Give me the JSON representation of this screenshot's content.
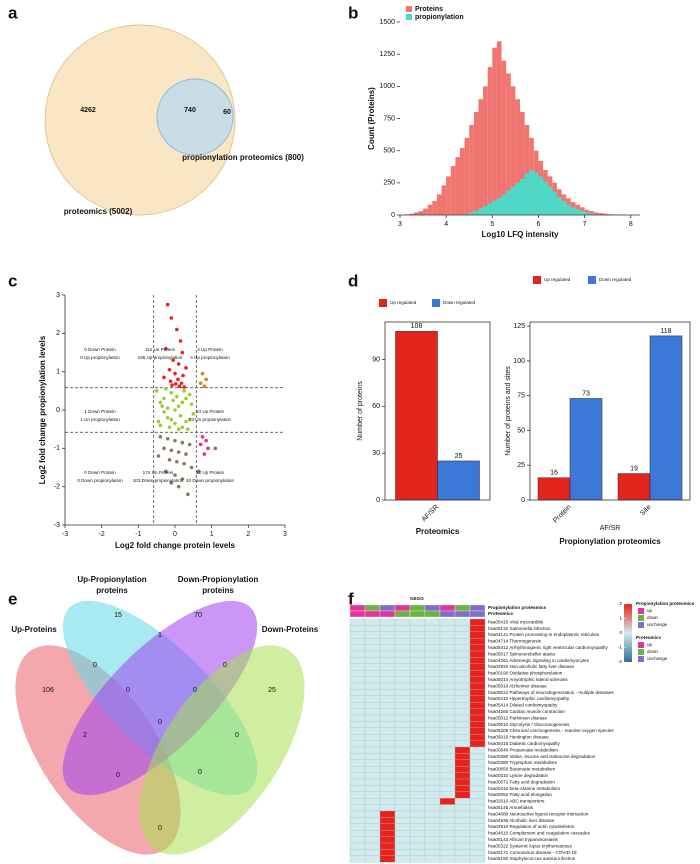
{
  "chart_data": [
    {
      "type": "venn2",
      "panel": "a",
      "sets": [
        {
          "label": "proteomics (5002)",
          "color": "#f6e0b5"
        },
        {
          "label": "propionylation proteomics (800)",
          "color": "#bcdaee"
        }
      ],
      "values": [
        4262,
        740,
        60
      ]
    },
    {
      "type": "histogram",
      "panel": "b",
      "xlabel": "Log10 LFQ intensity",
      "ylabel": "Count (Proteins)",
      "bins": [
        3.1,
        3.2,
        3.3,
        3.4,
        3.5,
        3.6,
        3.7,
        3.8,
        3.9,
        4,
        4.1,
        4.2,
        4.3,
        4.4,
        4.5,
        4.6,
        4.7,
        4.8,
        4.9,
        5,
        5.1,
        5.2,
        5.3,
        5.4,
        5.5,
        5.6,
        5.7,
        5.8,
        5.9,
        6,
        6.1,
        6.2,
        6.3,
        6.4,
        6.5,
        6.6,
        6.7,
        6.8,
        6.9,
        7,
        7.1,
        7.2,
        7.3,
        7.4,
        7.5,
        7.6,
        7.7,
        7.8,
        7.9,
        8
      ],
      "series": [
        {
          "name": "Proteins",
          "color": "#f07470",
          "values": [
            5,
            10,
            20,
            30,
            50,
            80,
            110,
            160,
            230,
            300,
            380,
            450,
            520,
            600,
            700,
            800,
            900,
            1000,
            1150,
            1300,
            1350,
            1200,
            1100,
            1000,
            900,
            800,
            700,
            600,
            500,
            420,
            350,
            300,
            250,
            200,
            160,
            130,
            100,
            80,
            60,
            40,
            30,
            20,
            15,
            10,
            6,
            4,
            2,
            1,
            1
          ]
        },
        {
          "name": "propionylation",
          "color": "#4dd9c8",
          "values": [
            0,
            0,
            0,
            0,
            0,
            0,
            0,
            0,
            0,
            0,
            0,
            0,
            5,
            10,
            20,
            30,
            50,
            70,
            90,
            110,
            130,
            160,
            190,
            220,
            250,
            280,
            320,
            350,
            330,
            300,
            260,
            220,
            180,
            140,
            110,
            80,
            60,
            45,
            30,
            20,
            12,
            6,
            3,
            0,
            0,
            0,
            0,
            0,
            0
          ]
        }
      ],
      "xlim": [
        3,
        8.2
      ],
      "ylim": [
        0,
        1500
      ],
      "xticks": [
        3,
        4,
        5,
        6,
        7,
        8
      ],
      "yticks": [
        0,
        250,
        500,
        750,
        1000,
        1250,
        1500
      ]
    },
    {
      "type": "scatter",
      "panel": "c",
      "xlabel": "Log2 fold change protein levels",
      "ylabel": "Log2 fold change propionylation levels",
      "xlim": [
        -3,
        3
      ],
      "ylim": [
        -3,
        3
      ],
      "xticks": [
        -3,
        -2,
        -1,
        0,
        1,
        2,
        3
      ],
      "yticks": [
        -3,
        -2,
        -1,
        0,
        1,
        2,
        3
      ],
      "hlines": [
        -0.58,
        0.58
      ],
      "vlines": [
        -0.58,
        0.58
      ],
      "series": [
        {
          "color": "#9acd32",
          "x": [
            -0.5,
            -0.4,
            -0.3,
            -0.2,
            -0.1,
            0,
            0.1,
            0.2,
            0.3,
            0.4,
            0.5,
            -0.45,
            -0.35,
            -0.25,
            -0.15,
            -0.05,
            0.05,
            0.15,
            0.25,
            0.35,
            0.45,
            -0.3,
            -0.1,
            0.1,
            0.3,
            -0.2,
            0,
            0.2,
            -0.4,
            0.4
          ],
          "y": [
            0.5,
            -0.4,
            0.3,
            -0.2,
            0.45,
            0,
            -0.5,
            0.2,
            -0.3,
            0.4,
            -0.1,
            -0.3,
            0.1,
            0.55,
            -0.45,
            0.25,
            0.35,
            -0.15,
            0.5,
            -0.5,
            0.15,
            -0.05,
            -0.25,
            0.1,
            0.3,
            0.05,
            -0.35,
            -0.45,
            0.2,
            -0.25
          ]
        },
        {
          "color": "#8b7a5a",
          "x": [
            -0.4,
            -0.2,
            0,
            0.2,
            0.4,
            -0.3,
            -0.1,
            0.1,
            0.3,
            -0.45,
            -0.15,
            0.05,
            0.25,
            0.45,
            -0.25,
            0,
            0.2,
            -0.1,
            0.1,
            0.35,
            1.1,
            0.65
          ],
          "y": [
            -0.7,
            -0.75,
            -0.8,
            -0.85,
            -0.9,
            -1,
            -1.05,
            -1.1,
            -1.15,
            -1.2,
            -1.3,
            -1.35,
            -1.4,
            -1.5,
            -1.6,
            -1.7,
            -1.8,
            -1.9,
            -2,
            -2.2,
            -1,
            -1.6
          ]
        },
        {
          "color": "#e8231e",
          "x": [
            -0.2,
            -0.1,
            0.05,
            0.15,
            -0.25,
            0.2,
            -0.05,
            0.1,
            0.3,
            -0.15,
            0,
            0.22,
            -0.3,
            0.08,
            -0.12,
            0.18,
            0.02,
            -0.08,
            0.12,
            0.25
          ],
          "y": [
            2.75,
            2.4,
            2.1,
            1.8,
            1.6,
            1.5,
            1.3,
            1.2,
            1.1,
            1.05,
            0.95,
            0.9,
            0.85,
            0.8,
            0.75,
            0.7,
            0.68,
            0.65,
            0.62,
            0.6
          ]
        },
        {
          "color": "#e08020",
          "x": [
            0.75,
            0.85,
            0.7,
            0.8
          ],
          "y": [
            0.95,
            0.8,
            0.7,
            0.62
          ]
        },
        {
          "color": "#e0338e",
          "x": [
            0.75,
            0.85,
            0.9,
            0.8,
            0.7
          ],
          "y": [
            -0.7,
            -0.8,
            -1,
            -1.15,
            -0.9
          ]
        }
      ],
      "annotations": [
        "0 Down Protein",
        "0 Up propionylation",
        "112 Un Protein",
        "185 Up propionylation",
        "4 Up Protein",
        "4 Up propionylation",
        "1 Down Protein",
        "1 Un propionylation",
        "24 Up Protein",
        "73 Un propionylation",
        "0 Down Protein",
        "0 Down propionylation",
        "174 Un Protein",
        "103 Down propionylation",
        "12 Up Protein",
        "10 Down propionylation"
      ]
    },
    {
      "type": "bar",
      "panel": "d",
      "ylabel": "Number of proteins",
      "subtitle": "Proteomics",
      "categories": [
        "AF/SR"
      ],
      "series": [
        {
          "name": "Up regulated",
          "color": "#e2261e",
          "values": [
            108
          ]
        },
        {
          "name": "Down regulated",
          "color": "#3c78d8",
          "values": [
            25
          ]
        }
      ],
      "ylim": [
        0,
        114
      ],
      "yticks": [
        0,
        30,
        60,
        90
      ]
    },
    {
      "type": "bar",
      "ylabel": "Number of proteins and sites",
      "xlabel": "AF/SR",
      "subtitle": "Propionylation proteomics",
      "categories": [
        "Protein",
        "Site"
      ],
      "series": [
        {
          "name": "Up regulated",
          "color": "#e2261e",
          "values": [
            16,
            19
          ]
        },
        {
          "name": "Down regulated",
          "color": "#3c78d8",
          "values": [
            73,
            118
          ]
        }
      ],
      "ylim": [
        0,
        128
      ],
      "yticks": [
        0,
        25,
        50,
        75,
        100,
        125
      ]
    },
    {
      "type": "venn4",
      "panel": "e",
      "sets": [
        {
          "label": [
            "Up-Proteins"
          ],
          "color": "#e8606a"
        },
        {
          "label": [
            "Up-Propionylation",
            "proteins"
          ],
          "color": "#5ed8e8"
        },
        {
          "label": [
            "Down-Propionylation",
            "proteins"
          ],
          "color": "#a040f0"
        },
        {
          "label": [
            "Down-Proteins"
          ],
          "color": "#a8e050"
        }
      ],
      "values": [
        106,
        15,
        70,
        25,
        0,
        1,
        0,
        0,
        0,
        2,
        0,
        0,
        0,
        0,
        0
      ]
    },
    {
      "type": "heatmap",
      "panel": "f",
      "title": "KEGG",
      "col_groups": [
        {
          "name": "Propionylation proteomics",
          "levels": [
            "up",
            "down",
            "unchange"
          ],
          "colors": [
            "#e4339a",
            "#6db33f",
            "#7f6fc9"
          ],
          "values": [
            "up",
            "down",
            "unchange",
            "up",
            "down",
            "unchange",
            "up",
            "down",
            "unchange"
          ]
        },
        {
          "name": "Proteomics",
          "levels": [
            "up",
            "down",
            "unchange"
          ],
          "colors": [
            "#e4339a",
            "#6db33f",
            "#7f6fc9"
          ],
          "values": [
            "up",
            "up",
            "up",
            "down",
            "down",
            "down",
            "unchange",
            "unchange",
            "unchange"
          ]
        }
      ],
      "rows": [
        "hsa05416 Viral myocarditis",
        "hsa05132 Salmonella infection",
        "hsa04141 Protein processing in endoplasmic reticulum",
        "hsa04714 Thermogenesis",
        "hsa05412 Arrhythmogenic right ventricular cardiomyopathy",
        "hsa05017 Spinocerebellar ataxia",
        "hsa04261 Adrenergic signaling in cardiomyocytes",
        "hsa04932 Non-alcoholic fatty liver disease",
        "hsa00190 Oxidative phosphorylation",
        "hsa05014 Amyotrophic lateral sclerosis",
        "hsa05010 Alzheimer disease",
        "hsa05022 Pathways of neurodegeneration - multiple diseases",
        "hsa05410 Hypertrophic cardiomyopathy",
        "hsa05414 Dilated cardiomyopathy",
        "hsa04260 Cardiac muscle contraction",
        "hsa05012 Parkinson disease",
        "hsa00010 Glycolysis / Gluconeogenesis",
        "hsa05208 Chemical carcinogenesis - reactive oxygen species",
        "hsa05016 Huntington disease",
        "hsa05415 Diabetic cardiomyopathy",
        "hsa00640 Propanoate metabolism",
        "hsa00280 Valine, leucine and isoleucine degradation",
        "hsa00380 Tryptophan metabolism",
        "hsa00650 Butanoate metabolism",
        "hsa00310 Lysine degradation",
        "hsa00071 Fatty acid degradation",
        "hsa00410 beta-Alanine metabolism",
        "hsa00062 Fatty acid elongation",
        "hsa02010 ABC transporters",
        "hsa05146 Amoebiasis",
        "hsa04080 Neuroactive ligand-receptor interaction",
        "hsa04936 Alcoholic liver disease",
        "hsa04810 Regulation of actin cytoskeleton",
        "hsa04610 Complement and coagulation cascades",
        "hsa05143 African trypanosomiasis",
        "hsa05322 Systemic lupus erythematosus",
        "hsa05171 Coronavirus disease - COVID-19",
        "hsa05150 Staphylococcus aureus infection"
      ],
      "values": [
        [
          0,
          0,
          0,
          0,
          0,
          0,
          0,
          0,
          2
        ],
        [
          0,
          0,
          0,
          0,
          0,
          0,
          0,
          0,
          2
        ],
        [
          0,
          0,
          0,
          0,
          0,
          0,
          0,
          0,
          2
        ],
        [
          0,
          0,
          0,
          0,
          0,
          0,
          0,
          0,
          2
        ],
        [
          0,
          0,
          0,
          0,
          0,
          0,
          0,
          0,
          2
        ],
        [
          0,
          0,
          0,
          0,
          0,
          0,
          0,
          0,
          2
        ],
        [
          0,
          0,
          0,
          0,
          0,
          0,
          0,
          0,
          2
        ],
        [
          0,
          0,
          0,
          0,
          0,
          0,
          0,
          0,
          2
        ],
        [
          0,
          0,
          0,
          0,
          0,
          0,
          0,
          0,
          2
        ],
        [
          0,
          0,
          0,
          0,
          0,
          0,
          0,
          0,
          2
        ],
        [
          0,
          0,
          0,
          0,
          0,
          0,
          0,
          0,
          2
        ],
        [
          0,
          0,
          0,
          0,
          0,
          0,
          0,
          0,
          2
        ],
        [
          0,
          0,
          0,
          0,
          0,
          0,
          0,
          0,
          2
        ],
        [
          0,
          0,
          0,
          0,
          0,
          0,
          0,
          0,
          2
        ],
        [
          0,
          0,
          0,
          0,
          0,
          0,
          0,
          0,
          2
        ],
        [
          0,
          0,
          0,
          0,
          0,
          0,
          0,
          0,
          2
        ],
        [
          0,
          0,
          0,
          0,
          0,
          0,
          0,
          0,
          2
        ],
        [
          0,
          0,
          0,
          0,
          0,
          0,
          0,
          0,
          2
        ],
        [
          0,
          0,
          0,
          0,
          0,
          0,
          0,
          0,
          2
        ],
        [
          0,
          0,
          0,
          0,
          0,
          0,
          0,
          0,
          2
        ],
        [
          0,
          0,
          0,
          0,
          0,
          0,
          0,
          2,
          0
        ],
        [
          0,
          0,
          0,
          0,
          0,
          0,
          0,
          2,
          0
        ],
        [
          0,
          0,
          0,
          0,
          0,
          0,
          0,
          2,
          0
        ],
        [
          0,
          0,
          0,
          0,
          0,
          0,
          0,
          2,
          0
        ],
        [
          0,
          0,
          0,
          0,
          0,
          0,
          0,
          2,
          0
        ],
        [
          0,
          0,
          0,
          0,
          0,
          0,
          0,
          2,
          0
        ],
        [
          0,
          0,
          0,
          0,
          0,
          0,
          0,
          2,
          0
        ],
        [
          0,
          0,
          0,
          0,
          0,
          0,
          0,
          2,
          0
        ],
        [
          0,
          0,
          0,
          0,
          0,
          0,
          2,
          0,
          0
        ],
        [
          0,
          0,
          0,
          0,
          0,
          0,
          0,
          0,
          0
        ],
        [
          0,
          0,
          2,
          0,
          0,
          0,
          0,
          0,
          0
        ],
        [
          0,
          0,
          2,
          0,
          0,
          0,
          0,
          0,
          0
        ],
        [
          0,
          0,
          2,
          0,
          0,
          0,
          0,
          0,
          0
        ],
        [
          0,
          0,
          2,
          0,
          0,
          0,
          0,
          0,
          0
        ],
        [
          0,
          0,
          2,
          0,
          0,
          0,
          0,
          0,
          0
        ],
        [
          0,
          0,
          2,
          0,
          0,
          0,
          0,
          0,
          0
        ],
        [
          0,
          0,
          2,
          0,
          0,
          0,
          0,
          0,
          0
        ],
        [
          0,
          0,
          2,
          0,
          0,
          0,
          0,
          0,
          0
        ]
      ],
      "clim": [
        -2,
        2
      ],
      "cticks": [
        2,
        1,
        0,
        -1,
        -2
      ],
      "colorscale": [
        "#2f6f8f",
        "#d0eaed",
        "#e8231e"
      ]
    }
  ]
}
